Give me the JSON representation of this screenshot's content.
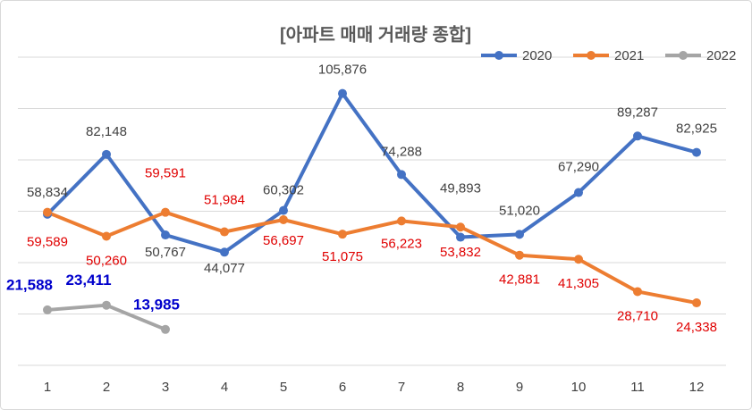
{
  "chart_data": {
    "type": "line",
    "title": "[아파트 매매 거래량 종합]",
    "categories": [
      "1",
      "2",
      "3",
      "4",
      "5",
      "6",
      "7",
      "8",
      "9",
      "10",
      "11",
      "12"
    ],
    "series": [
      {
        "name": "2020",
        "color": "#4472c4",
        "label_color": "#404040",
        "values": [
          58834,
          82148,
          50767,
          44077,
          60302,
          105876,
          74288,
          49893,
          51020,
          67290,
          89287,
          82925
        ],
        "value_labels": [
          "58,834",
          "82,148",
          "50,767",
          "44,077",
          "60,302",
          "105,876",
          "74,288",
          "49,893",
          "51,020",
          "67,290",
          "89,287",
          "82,925"
        ]
      },
      {
        "name": "2021",
        "color": "#ed7d31",
        "label_color": "#e00000",
        "values": [
          59589,
          50260,
          59591,
          51984,
          56697,
          51075,
          56223,
          53832,
          42881,
          41305,
          28710,
          24338
        ],
        "value_labels": [
          "59,589",
          "50,260",
          "59,591",
          "51,984",
          "56,697",
          "51,075",
          "56,223",
          "53,832",
          "42,881",
          "41,305",
          "28,710",
          "24,338"
        ]
      },
      {
        "name": "2022",
        "color": "#a5a5a5",
        "label_color": "#0000cc",
        "values": [
          21588,
          23411,
          13985,
          null,
          null,
          null,
          null,
          null,
          null,
          null,
          null,
          null
        ],
        "value_labels": [
          "21,588",
          "23,411",
          "13,985",
          null,
          null,
          null,
          null,
          null,
          null,
          null,
          null,
          null
        ]
      }
    ],
    "ylim": [
      0,
      120000
    ],
    "yticks": [
      0,
      20000,
      40000,
      60000,
      80000,
      100000,
      120000
    ],
    "grid": true,
    "legend": "top-right"
  }
}
